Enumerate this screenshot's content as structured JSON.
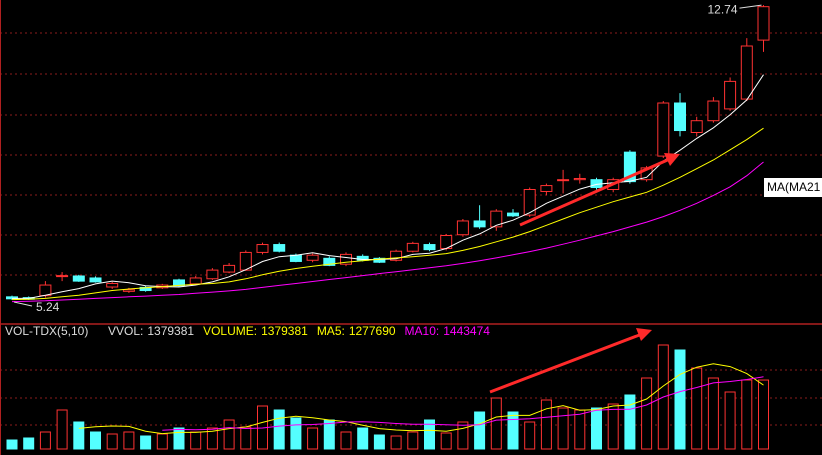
{
  "chart_data": [
    {
      "type": "candlestick",
      "open": [
        5.32,
        5.3,
        5.35,
        5.85,
        5.85,
        5.8,
        5.57,
        5.46,
        5.56,
        5.55,
        5.75,
        5.65,
        5.78,
        5.95,
        6.0,
        6.45,
        6.65,
        6.38,
        6.25,
        6.3,
        6.15,
        6.35,
        6.3,
        6.25,
        6.48,
        6.65,
        6.55,
        6.9,
        7.25,
        7.1,
        7.45,
        7.4,
        8.0,
        8.28,
        8.3,
        8.3,
        8.05,
        9.0,
        8.3,
        8.9,
        10.25,
        9.5,
        9.8,
        10.1,
        10.35,
        11.85
      ],
      "high": [
        5.35,
        5.33,
        5.72,
        5.95,
        5.88,
        5.84,
        5.7,
        5.55,
        5.6,
        5.65,
        5.78,
        5.85,
        6.05,
        6.18,
        6.5,
        6.7,
        6.7,
        6.42,
        6.42,
        6.35,
        6.45,
        6.4,
        6.33,
        6.52,
        6.72,
        6.7,
        6.92,
        7.3,
        7.65,
        7.55,
        7.55,
        8.1,
        8.2,
        8.55,
        8.45,
        8.35,
        8.35,
        9.05,
        8.65,
        10.3,
        10.5,
        9.9,
        10.4,
        10.9,
        11.9,
        12.74
      ],
      "low": [
        5.24,
        5.24,
        5.3,
        5.72,
        5.7,
        5.68,
        5.52,
        5.42,
        5.45,
        5.52,
        5.58,
        5.62,
        5.75,
        5.92,
        5.98,
        6.4,
        6.45,
        6.2,
        6.2,
        6.1,
        6.1,
        6.22,
        6.18,
        6.22,
        6.45,
        6.48,
        6.5,
        6.85,
        7.05,
        7.0,
        7.35,
        7.35,
        7.9,
        7.95,
        8.2,
        8.05,
        7.98,
        8.2,
        8.25,
        8.85,
        9.4,
        9.4,
        9.75,
        10.05,
        10.3,
        11.55
      ],
      "close": [
        5.27,
        5.26,
        5.62,
        5.86,
        5.72,
        5.7,
        5.66,
        5.5,
        5.48,
        5.62,
        5.6,
        5.8,
        6.0,
        6.12,
        6.45,
        6.65,
        6.48,
        6.22,
        6.38,
        6.12,
        6.4,
        6.25,
        6.2,
        6.48,
        6.68,
        6.52,
        6.88,
        7.25,
        7.1,
        7.5,
        7.38,
        8.05,
        8.15,
        8.3,
        8.33,
        8.1,
        8.3,
        8.25,
        8.6,
        10.25,
        9.55,
        9.8,
        10.3,
        10.8,
        11.7,
        12.7
      ],
      "up_color": "#ff3232",
      "down_color": "#54ffff",
      "ylim": [
        4.68,
        12.87
      ],
      "series": [
        {
          "color": "#ffffff",
          "values": [
            5.28,
            5.28,
            5.36,
            5.45,
            5.53,
            5.65,
            5.72,
            5.68,
            5.6,
            5.58,
            5.57,
            5.62,
            5.7,
            5.83,
            6.01,
            6.22,
            6.34,
            6.38,
            6.44,
            6.37,
            6.32,
            6.27,
            6.27,
            6.29,
            6.4,
            6.43,
            6.55,
            6.76,
            6.92,
            7.14,
            7.27,
            7.46,
            7.7,
            7.88,
            8.06,
            8.18,
            8.22,
            8.26,
            8.36,
            8.77,
            9.05,
            9.35,
            9.62,
            9.95,
            10.33,
            10.97
          ]
        },
        {
          "color": "#ffff00",
          "values": [
            5.25,
            5.26,
            5.28,
            5.32,
            5.36,
            5.42,
            5.48,
            5.52,
            5.55,
            5.58,
            5.61,
            5.64,
            5.66,
            5.7,
            5.78,
            5.88,
            5.97,
            6.04,
            6.1,
            6.15,
            6.2,
            6.24,
            6.28,
            6.31,
            6.34,
            6.38,
            6.42,
            6.5,
            6.6,
            6.72,
            6.84,
            6.98,
            7.14,
            7.3,
            7.46,
            7.6,
            7.74,
            7.86,
            7.98,
            8.16,
            8.36,
            8.58,
            8.8,
            9.06,
            9.32,
            9.61
          ]
        },
        {
          "color": "#ff00ff",
          "values": [
            5.2,
            5.21,
            5.22,
            5.24,
            5.26,
            5.28,
            5.3,
            5.32,
            5.34,
            5.36,
            5.38,
            5.41,
            5.44,
            5.47,
            5.51,
            5.56,
            5.61,
            5.66,
            5.71,
            5.76,
            5.81,
            5.86,
            5.91,
            5.96,
            6.01,
            6.06,
            6.11,
            6.17,
            6.24,
            6.31,
            6.39,
            6.47,
            6.56,
            6.66,
            6.76,
            6.87,
            6.98,
            7.1,
            7.22,
            7.36,
            7.52,
            7.7,
            7.9,
            8.12,
            8.4,
            8.75
          ]
        }
      ],
      "annotations": [
        {
          "value": 12.74
        },
        {
          "value": 5.24
        }
      ],
      "label_box": "MA(MA21"
    },
    {
      "type": "bar",
      "indicator": "VOL-TDX(5,10)",
      "readouts": [
        {
          "name": "VVOL:",
          "value": 1379381,
          "color": "#dddddd"
        },
        {
          "name": "VOLUME:",
          "value": 1379381,
          "color": "#ffff00"
        },
        {
          "name": "MA5:",
          "value": 1277690,
          "color": "#ffff00"
        },
        {
          "name": "MA10:",
          "value": 1443474,
          "color": "#ff00ff"
        }
      ],
      "values": [
        180000,
        220000,
        340000,
        780000,
        540000,
        340000,
        300000,
        340000,
        260000,
        300000,
        420000,
        340000,
        420000,
        580000,
        440000,
        860000,
        780000,
        620000,
        420000,
        580000,
        340000,
        420000,
        280000,
        260000,
        340000,
        580000,
        320000,
        540000,
        740000,
        1020000,
        740000,
        540000,
        980000,
        820000,
        780000,
        820000,
        900000,
        1080000,
        1420000,
        2080000,
        1980000,
        1620000,
        1420000,
        1140000,
        1380000,
        1379381
      ],
      "ylim": [
        0,
        2480000
      ],
      "series": [
        {
          "color": "#ffff00",
          "values": [
            null,
            null,
            null,
            null,
            412000,
            444000,
            460000,
            452000,
            356000,
            308000,
            332000,
            332000,
            356000,
            408000,
            440000,
            532000,
            616000,
            656000,
            624000,
            580000,
            548000,
            476000,
            408000,
            380000,
            364000,
            376000,
            356000,
            412000,
            504000,
            640000,
            672000,
            672000,
            804000,
            868000,
            776000,
            788000,
            860000,
            880000,
            1000000,
            1260000,
            1492000,
            1636000,
            1704000,
            1648000,
            1508000,
            1277690
          ]
        },
        {
          "color": "#ff00ff",
          "values": [
            null,
            null,
            null,
            null,
            null,
            null,
            null,
            null,
            null,
            376000,
            392000,
            384000,
            396000,
            428000,
            410000,
            420000,
            458000,
            482000,
            490000,
            510000,
            540000,
            546000,
            532000,
            510000,
            494000,
            496000,
            486000,
            476000,
            484000,
            578000,
            590000,
            606000,
            636000,
            664000,
            696000,
            776000,
            792000,
            794000,
            880000,
            1040000,
            1148000,
            1230000,
            1322000,
            1350000,
            1390000,
            1443474
          ]
        }
      ]
    }
  ]
}
